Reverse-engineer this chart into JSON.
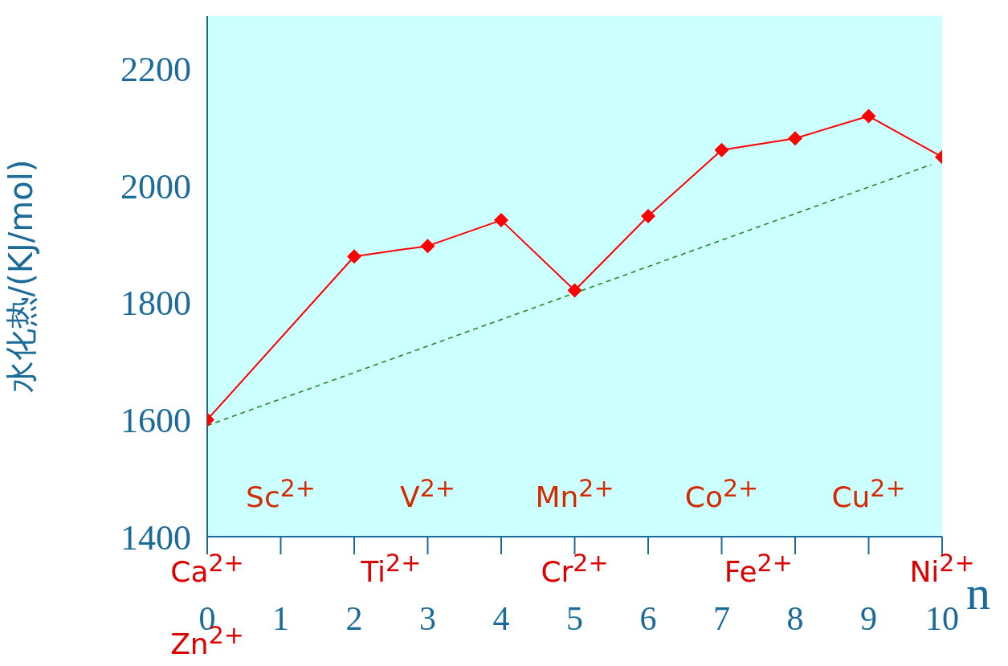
{
  "chart_data": {
    "type": "line",
    "ylabel": "水化热/(KJ/mol)",
    "xlabel": "n",
    "xlim": [
      0,
      10
    ],
    "xticks": [
      0,
      1,
      2,
      3,
      4,
      5,
      6,
      7,
      8,
      9,
      10
    ],
    "ylim": [
      1400,
      2290
    ],
    "yticks": [
      1400,
      1600,
      1800,
      2000,
      2200
    ],
    "series": [
      {
        "color": "#ff0000",
        "x": [
          0,
          2,
          3,
          4,
          5,
          6,
          7,
          8,
          9,
          10
        ],
        "values": [
          1600,
          1879,
          1897,
          1941,
          1821,
          1948,
          2061,
          2081,
          2119,
          2049
        ],
        "marker": "diamond"
      },
      {
        "type": "line",
        "color": "#228b22",
        "x": [
          0,
          9.85
        ],
        "values": [
          1590,
          2036
        ],
        "marker": "none",
        "line_style": "dashed"
      }
    ],
    "annotations": [
      "Sc$^{2+}$",
      "V$^{2+}$",
      "Mn$^{2+}$",
      "Co$^{2+}$",
      "Cu$^{2+}$",
      "Ca$^{2+}$",
      "Ti$^{2+}$",
      "Cr$^{2+}$",
      "Fe$^{2+}$",
      "Ni$^{2+}$",
      "Zn$^{2+}$"
    ],
    "grid": false
  }
}
